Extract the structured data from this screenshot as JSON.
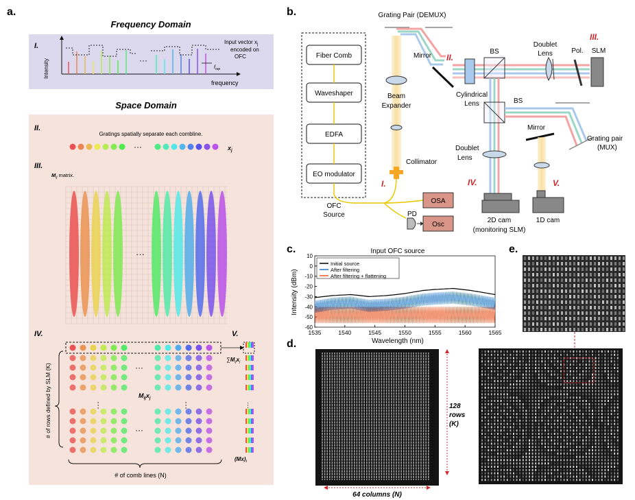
{
  "panel_a": {
    "label": "a.",
    "freq_title": "Frequency Domain",
    "space_title": "Space Domain",
    "roman_I": "I.",
    "roman_II": "II.",
    "roman_III": "III.",
    "roman_IV": "IV.",
    "roman_V": "V.",
    "intensity_label": "Intensity",
    "frequency_label": "frequency",
    "input_vector_line1": "Input vector x",
    "input_vector_sub": "j",
    "input_vector_line2": "encoded on",
    "input_vector_line3": "OFC",
    "frep": "f",
    "frep_sub": "rep",
    "gratings_text": "Gratings spatially separate each combline.",
    "xj": "x",
    "xj_sub": "j",
    "focusing_text_pre": "Focusing elongated comb lights on SLM, which encodes ",
    "focusing_M": "M",
    "focusing_sub": "ij",
    "focusing_post": " matrix.",
    "rows_label": "# of rows defined by SLM (K)",
    "cols_label": "# of comb lines (N)",
    "mij_xj": "M",
    "mij_sub": "ij",
    "mij_x": "x",
    "mij_xsub": "j",
    "sum_label": "M",
    "mx_label": "(Mx)",
    "mx_sub": "i",
    "ellipsis": "···"
  },
  "panel_b": {
    "label": "b.",
    "grating_demux": "Grating Pair (DEMUX)",
    "fiber_comb": "Fiber Comb",
    "waveshaper": "Waveshaper",
    "edfa": "EDFA",
    "eo_modulator": "EO modulator",
    "ofc_source_1": "OFC",
    "ofc_source_2": "Source",
    "beam_expander_1": "Beam",
    "beam_expander_2": "Expander",
    "collimator": "Collimator",
    "mirror1": "Mirror",
    "cyl_lens_1": "Cylindrical",
    "cyl_lens_2": "Lens",
    "bs1": "BS",
    "bs2": "BS",
    "doublet1_1": "Doublet",
    "doublet1_2": "Lens",
    "pol": "Pol.",
    "slm": "SLM",
    "mirror2": "Mirror",
    "grating_mux_1": "Grating pair",
    "grating_mux_2": "(MUX)",
    "doublet2_1": "Doublet",
    "doublet2_2": "Lens",
    "osa": "OSA",
    "osc": "Osc",
    "pd": "PD",
    "cam2d_1": "2D cam",
    "cam2d_2": "(monitoring SLM)",
    "cam1d": "1D cam",
    "stage_I": "I.",
    "stage_II": "II.",
    "stage_III": "III.",
    "stage_IV": "IV.",
    "stage_V": "V."
  },
  "panel_c": {
    "label": "c.",
    "e_label": "e.",
    "d_label": "d.",
    "rows_text_1": "128",
    "rows_text_2": "rows",
    "rows_text_3": "(K)",
    "cols_text": "64 columns (N)"
  },
  "chart_data": {
    "type": "line",
    "title": "Input OFC source",
    "xlabel": "Wavelength (nm)",
    "ylabel": "Intensity (dBm)",
    "xlim": [
      1535,
      1565
    ],
    "ylim": [
      -60,
      10
    ],
    "xticks": [
      "1535",
      "1540",
      "1545",
      "1550",
      "1555",
      "1560",
      "1565"
    ],
    "yticks": [
      "10",
      "0",
      "-10",
      "-20",
      "-30",
      "-40",
      "-50",
      "-60"
    ],
    "legend_position": "top-left",
    "series": [
      {
        "name": "Initial source",
        "color": "#000000",
        "x": [
          1535,
          1538,
          1541,
          1544,
          1547,
          1550,
          1553,
          1555,
          1558,
          1561,
          1565
        ],
        "y": [
          -31,
          -29,
          -28,
          -30,
          -29,
          -27,
          -24,
          -23,
          -22,
          -24,
          -28
        ]
      },
      {
        "name": "After filtering",
        "color": "#1f77c4",
        "x": [
          1535,
          1538,
          1541,
          1544,
          1547,
          1550,
          1553,
          1555,
          1558,
          1561,
          1565
        ],
        "y": [
          -34,
          -31,
          -30,
          -33,
          -32,
          -30,
          -27,
          -26,
          -25,
          -27,
          -31
        ]
      },
      {
        "name": "After filtering + flattening",
        "color": "#e8541e",
        "x": [
          1535,
          1538,
          1541,
          1544,
          1547,
          1550,
          1553,
          1555,
          1558,
          1561,
          1565
        ],
        "y": [
          -40,
          -40,
          -40,
          -40,
          -40,
          -40,
          -40,
          -40,
          -40,
          -40,
          -40
        ]
      }
    ]
  }
}
